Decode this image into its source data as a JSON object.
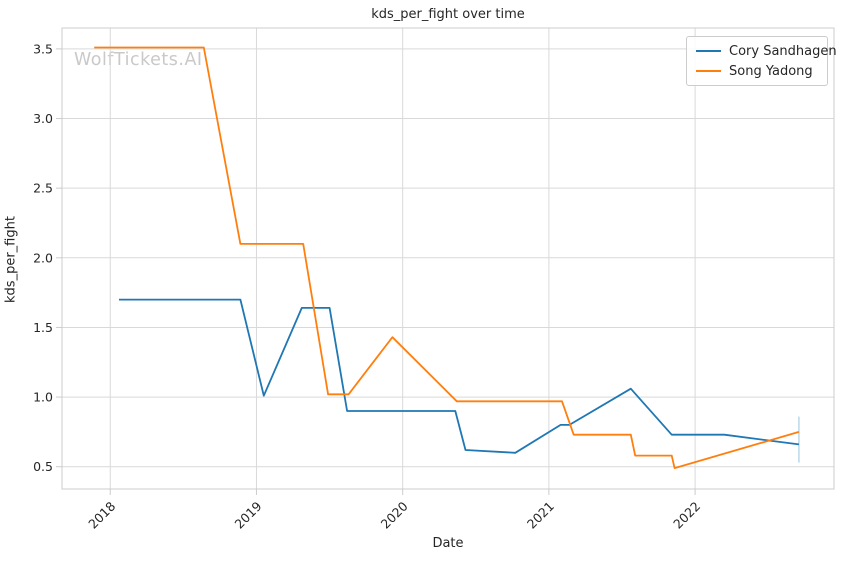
{
  "title": "kds_per_fight over time",
  "watermark": "WolfTickets.AI",
  "legend": {
    "items": [
      {
        "label": "Cory Sandhagen",
        "color": "#1f77b4"
      },
      {
        "label": "Song Yadong",
        "color": "#ff7f0e"
      }
    ]
  },
  "colors": {
    "grid": "#d9d9d9",
    "spine": "#cccccc",
    "tick": "#cccccc",
    "text": "#262626",
    "watermark": "#c9c9c9",
    "end_marker": "#b5d5ea"
  },
  "chart_data": {
    "type": "line",
    "title": "kds_per_fight over time",
    "xlabel": "Date",
    "ylabel": "kds_per_fight",
    "x_ticks": [
      2018,
      2019,
      2020,
      2021,
      2022
    ],
    "x_tick_labels": [
      "2018",
      "2019",
      "2020",
      "2021",
      "2022"
    ],
    "y_ticks": [
      0.5,
      1.0,
      1.5,
      2.0,
      2.5,
      3.0,
      3.5
    ],
    "y_tick_labels": [
      "0.5",
      "1.0",
      "1.5",
      "2.0",
      "2.5",
      "3.0",
      "3.5"
    ],
    "xlim": [
      2017.67,
      2022.95
    ],
    "ylim": [
      0.34,
      3.65
    ],
    "grid": true,
    "legend_position": "upper right",
    "series": [
      {
        "name": "Cory Sandhagen",
        "color": "#1f77b4",
        "x": [
          2018.06,
          2018.89,
          2019.05,
          2019.31,
          2019.5,
          2019.62,
          2020.36,
          2020.43,
          2020.77,
          2021.08,
          2021.14,
          2021.56,
          2021.84,
          2022.2,
          2022.71
        ],
        "y": [
          1.7,
          1.7,
          1.01,
          1.64,
          1.64,
          0.9,
          0.9,
          0.62,
          0.6,
          0.8,
          0.8,
          1.06,
          0.73,
          0.73,
          0.66
        ]
      },
      {
        "name": "Song Yadong",
        "color": "#ff7f0e",
        "x": [
          2017.89,
          2018.64,
          2018.89,
          2019.32,
          2019.49,
          2019.63,
          2019.93,
          2020.37,
          2021.09,
          2021.17,
          2021.56,
          2021.59,
          2021.84,
          2021.86,
          2022.71
        ],
        "y": [
          3.51,
          3.51,
          2.1,
          2.1,
          1.02,
          1.02,
          1.43,
          0.97,
          0.97,
          0.73,
          0.73,
          0.58,
          0.58,
          0.49,
          0.75
        ]
      }
    ],
    "end_marker": {
      "x": 2022.71,
      "y_from": 0.53,
      "y_to": 0.86
    }
  }
}
